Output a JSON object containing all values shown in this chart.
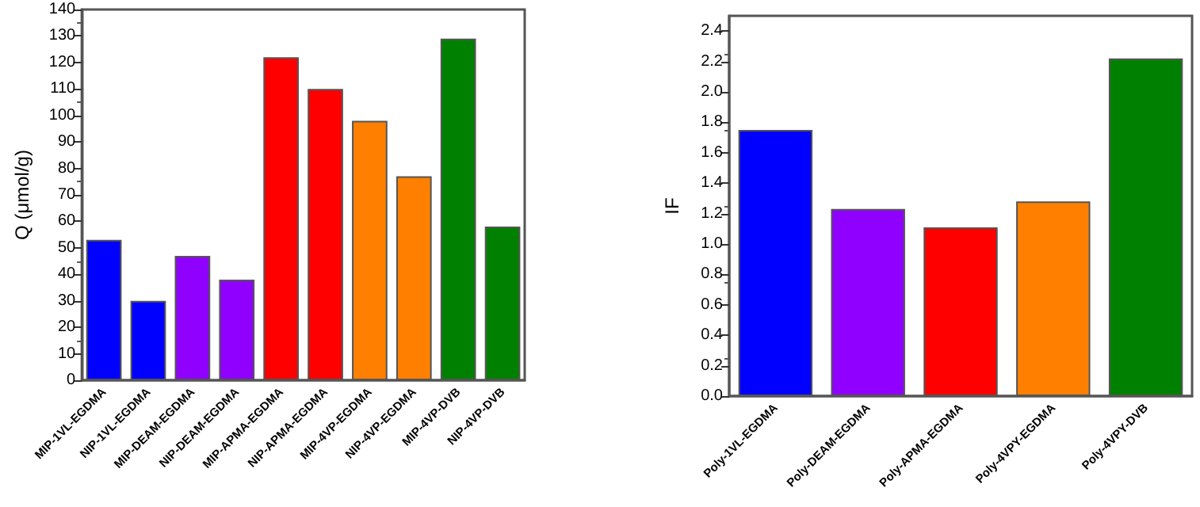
{
  "chart_data": [
    {
      "type": "bar",
      "ylabel": "Q (μmol/g)",
      "categories": [
        "MIP-1VL-EGDMA",
        "NIP-1VL-EGDMA",
        "MIP-DEAM-EGDMA",
        "NIP-DEAM-EGDMA",
        "MIP-APMA-EGDMA",
        "NIP-APMA-EGDMA",
        "MIP-4VP-EGDMA",
        "NIP-4VP-EGDMA",
        "MIP-4VP-DVB",
        "NIP-4VP-DVB"
      ],
      "values": [
        53,
        30,
        47,
        38,
        122,
        110,
        98,
        77,
        129,
        58
      ],
      "colors": [
        "#0000ff",
        "#0000ff",
        "#9000ff",
        "#9000ff",
        "#ff0000",
        "#ff0000",
        "#ff8000",
        "#ff8000",
        "#008000",
        "#008000"
      ],
      "ylim": [
        0,
        140
      ],
      "yticks": [
        0,
        10,
        20,
        30,
        40,
        50,
        60,
        70,
        80,
        90,
        100,
        110,
        120,
        130,
        140
      ],
      "grid": false
    },
    {
      "type": "bar",
      "ylabel": "IF",
      "categories": [
        "Poly-1VL-EGDMA",
        "Poly-DEAM-EGDMA",
        "Poly-APMA-EGDMA",
        "Poly-4VPY-EGDMA",
        "Poly-4VPY-DVB"
      ],
      "values": [
        1.75,
        1.23,
        1.11,
        1.28,
        2.22
      ],
      "colors": [
        "#0000ff",
        "#9000ff",
        "#ff0000",
        "#ff8000",
        "#008000"
      ],
      "ylim": [
        0,
        2.5
      ],
      "yticks": [
        {
          "value": 0,
          "label": "0.0"
        },
        {
          "value": 0.2,
          "label": "0.2"
        },
        {
          "value": 0.4,
          "label": "0.4"
        },
        {
          "value": 0.6,
          "label": "0.6"
        },
        {
          "value": 0.8,
          "label": "0.8"
        },
        {
          "value": 1,
          "label": "1.0"
        },
        {
          "value": 1.2,
          "label": "1.2"
        },
        {
          "value": 1.4,
          "label": "1.4"
        },
        {
          "value": 1.6,
          "label": "1.6"
        },
        {
          "value": 1.8,
          "label": "1.8"
        },
        {
          "value": 2,
          "label": "2.0"
        },
        {
          "value": 2.2,
          "label": "2.2"
        },
        {
          "value": 2.4,
          "label": "2.4"
        }
      ],
      "grid": false
    }
  ]
}
